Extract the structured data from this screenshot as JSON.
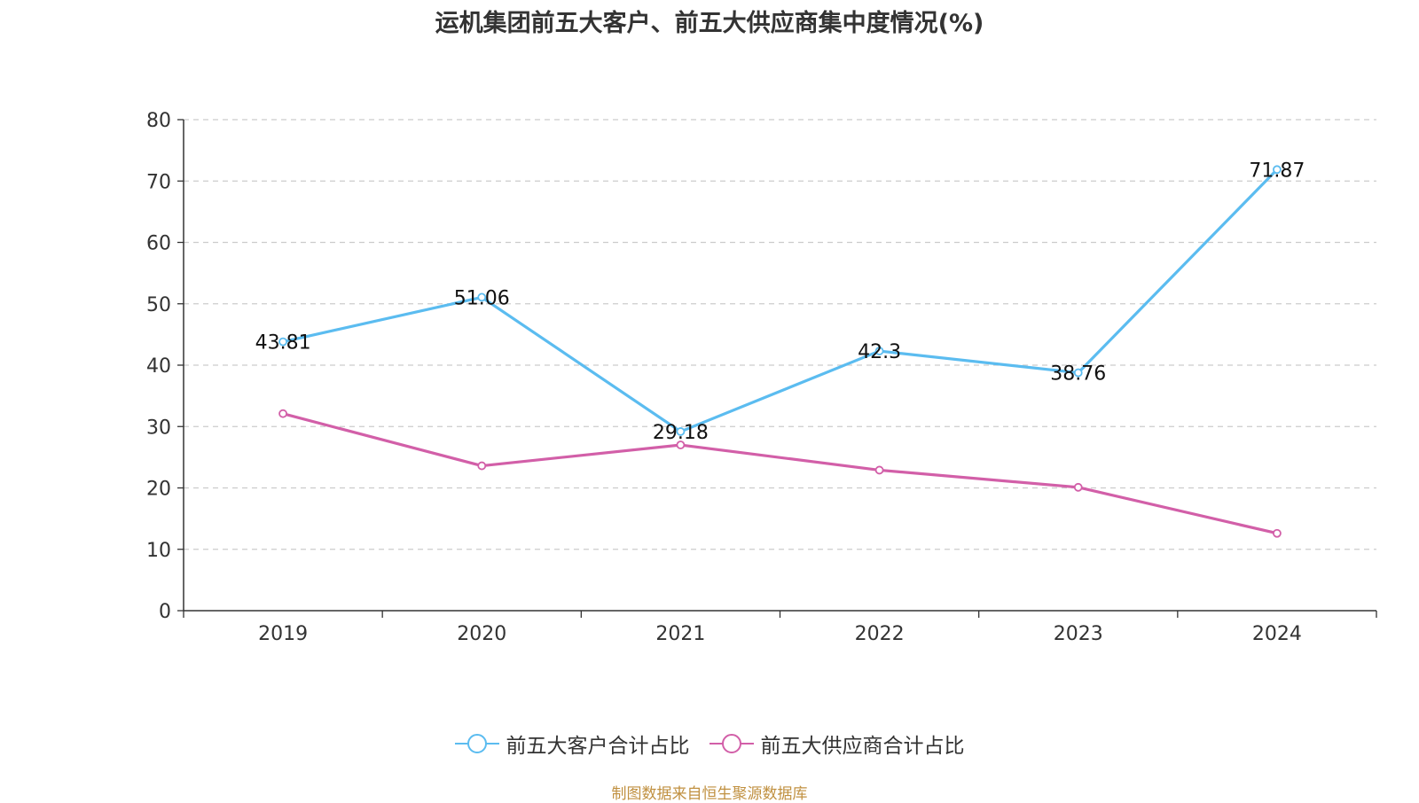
{
  "chart_data": {
    "type": "line",
    "title": "运机集团前五大客户、前五大供应商集中度情况(%)",
    "categories": [
      "2019",
      "2020",
      "2021",
      "2022",
      "2023",
      "2024"
    ],
    "ylim": [
      0,
      80
    ],
    "yticks": [
      "0",
      "10",
      "20",
      "30",
      "40",
      "50",
      "60",
      "70",
      "80"
    ],
    "grid": "horizontal dashed",
    "legend_position": "bottom",
    "series": [
      {
        "name": "前五大客户合计占比",
        "color": "#5bbcf0",
        "values": [
          43.81,
          51.06,
          29.18,
          42.3,
          38.76,
          71.87
        ],
        "labels": [
          "43.81",
          "51.06",
          "29.18",
          "42.3",
          "38.76",
          "71.87"
        ]
      },
      {
        "name": "前五大供应商合计占比",
        "color": "#d25fa8",
        "values": [
          32.1,
          23.6,
          27.0,
          22.9,
          20.1,
          12.6
        ]
      }
    ]
  },
  "source": "制图数据来自恒生聚源数据库"
}
